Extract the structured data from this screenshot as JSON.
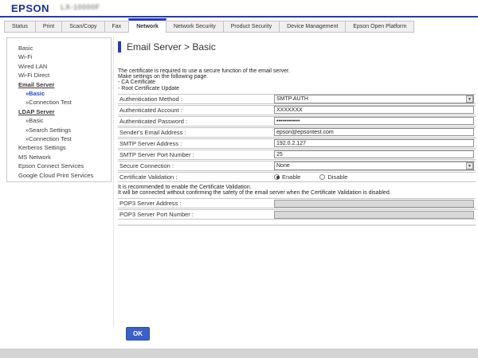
{
  "window": {
    "brand": "EPSON",
    "model": "LX-10000F"
  },
  "tabs": [
    {
      "label": "Status",
      "active": false
    },
    {
      "label": "Print",
      "active": false
    },
    {
      "label": "Scan/Copy",
      "active": false
    },
    {
      "label": "Fax",
      "active": false
    },
    {
      "label": "Network",
      "active": true
    },
    {
      "label": "Network Security",
      "active": false
    },
    {
      "label": "Product Security",
      "active": false
    },
    {
      "label": "Device Management",
      "active": false
    },
    {
      "label": "Epson Open Platform",
      "active": false
    }
  ],
  "sidebar": {
    "items": [
      {
        "label": "Basic",
        "type": "item"
      },
      {
        "label": "Wi-Fi",
        "type": "item"
      },
      {
        "label": "Wired LAN",
        "type": "item"
      },
      {
        "label": "Wi-Fi Direct",
        "type": "item"
      },
      {
        "label": "Email Server",
        "type": "section"
      },
      {
        "label": "»Basic",
        "type": "sub",
        "selected": true
      },
      {
        "label": "»Connection Test",
        "type": "sub"
      },
      {
        "label": "LDAP Server",
        "type": "section"
      },
      {
        "label": "»Basic",
        "type": "sub"
      },
      {
        "label": "»Search Settings",
        "type": "sub"
      },
      {
        "label": "»Connection Test",
        "type": "sub"
      },
      {
        "label": "Kerberos Settings",
        "type": "item"
      },
      {
        "label": "MS Network",
        "type": "item"
      },
      {
        "label": "Epson Connect Services",
        "type": "item"
      },
      {
        "label": "Google Cloud Print Services",
        "type": "item"
      }
    ]
  },
  "main": {
    "title": "Email Server > Basic",
    "intro": [
      "The certificate is required to use a secure function of the email server.",
      "Make settings on the following page.",
      "- CA Certificate",
      "- Root Certificate Update"
    ],
    "form_rows": [
      {
        "name": "authentication-method",
        "label": "Authentication Method :",
        "control": "select",
        "value": "SMTP AUTH"
      },
      {
        "name": "authenticated-account",
        "label": "Authenticated Account :",
        "control": "text",
        "value": "XXXXXXX"
      },
      {
        "name": "authenticated-password",
        "label": "Authenticated Password :",
        "control": "text",
        "value": "••••••••••••"
      },
      {
        "name": "senders-email-address",
        "label": "Sender's Email Address :",
        "control": "text",
        "value": "epson@epsontest.com"
      },
      {
        "name": "smtp-server-address",
        "label": "SMTP Server Address :",
        "control": "text",
        "value": "192.0.2.127"
      },
      {
        "name": "smtp-server-port-number",
        "label": "SMTP Server Port Number :",
        "control": "text",
        "value": "25"
      },
      {
        "name": "secure-connection",
        "label": "Secure Connection :",
        "control": "select",
        "value": "None"
      },
      {
        "name": "certificate-validation",
        "label": "Certificate Validation :",
        "control": "radio",
        "options": [
          {
            "label": "Enable",
            "checked": true
          },
          {
            "label": "Disable",
            "checked": false
          }
        ]
      }
    ],
    "notes": [
      "It is recommended to enable the Certificate Validation.",
      "It will be connected without confirming the safety of the email server when the Certificate Validation is disabled."
    ],
    "pop3_rows": [
      {
        "name": "pop3-server-address",
        "label": "POP3 Server Address :",
        "control": "text-disabled",
        "value": ""
      },
      {
        "name": "pop3-server-port-number",
        "label": "POP3 Server Port Number :",
        "control": "text-disabled",
        "value": ""
      }
    ],
    "ok_button": "OK"
  },
  "colors": {
    "brand_blue": "#1b2f9e",
    "accent_blue": "#2639b5",
    "link_blue": "#2244cc",
    "button_blue": "#3a60c8"
  }
}
